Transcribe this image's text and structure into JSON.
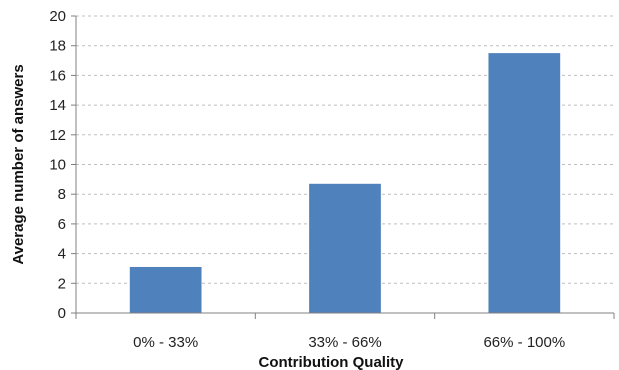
{
  "chart_data": {
    "type": "bar",
    "title": "",
    "xlabel": "Contribution Quality",
    "ylabel": "Average number of answers",
    "categories": [
      "0% - 33%",
      "33% - 66%",
      "66% - 100%"
    ],
    "values": [
      3.1,
      8.7,
      17.5
    ],
    "ylim": [
      0,
      20
    ],
    "yticks": [
      0,
      2,
      4,
      6,
      8,
      10,
      12,
      14,
      16,
      18,
      20
    ],
    "ytick_labels": [
      "0",
      "2",
      "4",
      "6",
      "8",
      "10",
      "12",
      "14",
      "16",
      "18",
      "20"
    ],
    "grid": "horizontal dashed",
    "legend": "none",
    "colors": {
      "bar": "#4f81bd",
      "grid": "#bfbfbf",
      "axis": "#808080"
    }
  }
}
